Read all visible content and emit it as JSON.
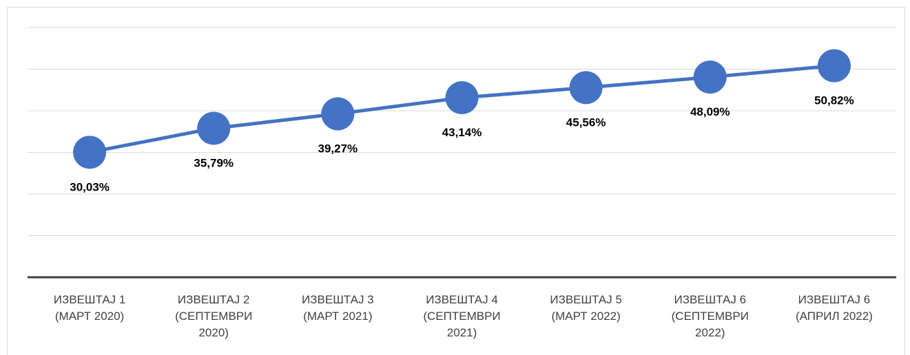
{
  "chart_data": {
    "type": "line",
    "categories": [
      "ИЗВЕШТАЈ 1 (МАРТ 2020)",
      "ИЗВЕШТАЈ 2 (СЕПТЕМВРИ 2020)",
      "ИЗВЕШТАЈ 3 (МАРТ 2021)",
      "ИЗВЕШТАЈ 4 (СЕПТЕМВРИ 2021)",
      "ИЗВЕШТАЈ 5 (МАРТ 2022)",
      "ИЗВЕШТАЈ 6 (СЕПТЕМВРИ 2022)",
      "ИЗВЕШТАЈ 6 (АПРИЛ 2022)"
    ],
    "values": [
      30.03,
      35.79,
      39.27,
      43.14,
      45.56,
      48.09,
      50.82
    ],
    "value_labels": [
      "30,03%",
      "35,79%",
      "39,27%",
      "43,14%",
      "45,56%",
      "48,09%",
      "50,82%"
    ],
    "color": "#4472c4",
    "ylim": [
      0,
      60
    ],
    "yticks": [
      0,
      10,
      20,
      30,
      40,
      50,
      60
    ],
    "grid": true
  }
}
